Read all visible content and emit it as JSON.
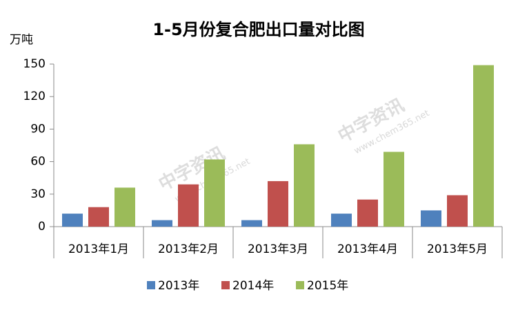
{
  "chart_data": {
    "type": "bar",
    "title": "1-5月份复合肥出口量对比图",
    "y_unit": "万吨",
    "watermark": [
      "中字资讯",
      "www.chem365.net"
    ],
    "categories": [
      "2013年1月",
      "2013年2月",
      "2013年3月",
      "2013年4月",
      "2013年5月"
    ],
    "series": [
      {
        "name": "2013年",
        "color": "#4f81bd",
        "values": [
          12,
          6,
          6,
          12,
          15
        ]
      },
      {
        "name": "2014年",
        "color": "#c0504d",
        "values": [
          18,
          39,
          42,
          25,
          29
        ]
      },
      {
        "name": "2015年",
        "color": "#9bbb59",
        "values": [
          36,
          62,
          76,
          69,
          149
        ]
      }
    ],
    "ylim": [
      0,
      150
    ],
    "yticks": [
      0,
      30,
      60,
      90,
      120,
      150
    ],
    "grid": false,
    "legend": "bottom"
  }
}
